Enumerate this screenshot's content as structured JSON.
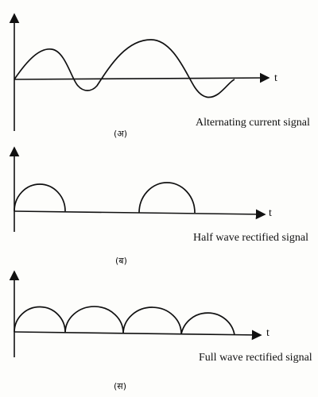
{
  "panels": [
    {
      "axis_label": "t",
      "caption": "Alternating current signal",
      "tag": "(अ)"
    },
    {
      "axis_label": "t",
      "caption": "Half wave rectified signal",
      "tag": "(ब)"
    },
    {
      "axis_label": "t",
      "caption": "Full wave rectified signal",
      "tag": "(स)"
    }
  ]
}
